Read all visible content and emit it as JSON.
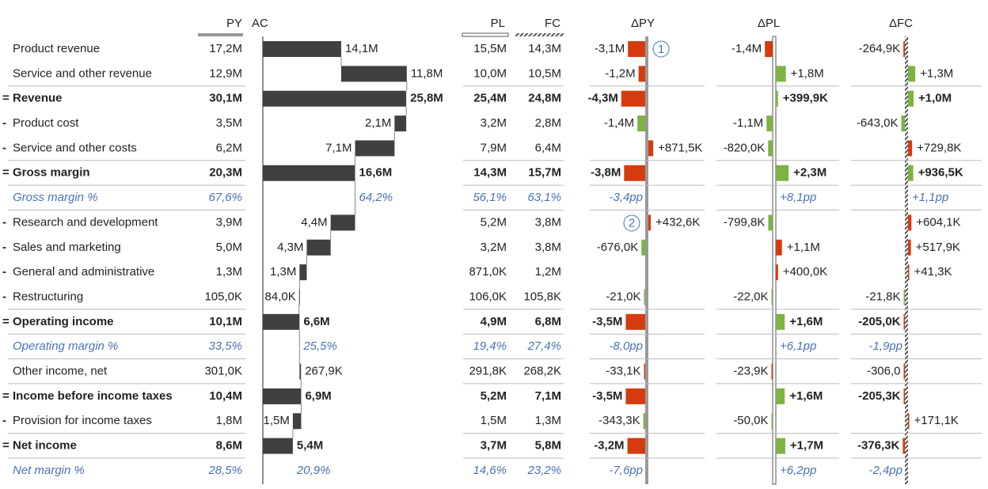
{
  "header": {
    "py": "PY",
    "ac": "AC",
    "pl": "PL",
    "fc": "FC",
    "dpy": "ΔPY",
    "dpl": "ΔPL",
    "dfc": "ΔFC"
  },
  "rows": [
    {
      "prefix": "",
      "label": "Product revenue",
      "py": "17,2M",
      "ac": {
        "value": 14.1,
        "label": "14,1M"
      },
      "pl": "15,5M",
      "fc": "14,3M",
      "dpy": {
        "value": -3.1,
        "label": "-3,1M"
      },
      "dpl": {
        "value": -1.4,
        "label": "-1,4M"
      },
      "dfc": {
        "value": -0.2649,
        "label": "-264,9K"
      },
      "note": "1"
    },
    {
      "prefix": "",
      "label": "Service and other revenue",
      "py": "12,9M",
      "ac": {
        "value": 11.8,
        "label": "11,8M"
      },
      "pl": "10,0M",
      "fc": "10,5M",
      "dpy": {
        "value": -1.2,
        "label": "-1,2M"
      },
      "dpl": {
        "value": 1.8,
        "label": "+1,8M"
      },
      "dfc": {
        "value": 1.3,
        "label": "+1,3M"
      }
    },
    {
      "prefix": "=",
      "label": "Revenue",
      "py": "30,1M",
      "ac": {
        "value": 25.8,
        "label": "25,8M"
      },
      "pl": "25,4M",
      "fc": "24,8M",
      "dpy": {
        "value": -4.3,
        "label": "-4,3M"
      },
      "dpl": {
        "value": 0.3999,
        "label": "+399,9K"
      },
      "dfc": {
        "value": 1.0,
        "label": "+1,0M"
      }
    },
    {
      "prefix": "-",
      "label": "Product cost",
      "py": "3,5M",
      "ac": {
        "value": 2.1,
        "label": "2,1M"
      },
      "pl": "3,2M",
      "fc": "2,8M",
      "dpy": {
        "value": -1.4,
        "label": "-1,4M"
      },
      "dpl": {
        "value": -1.1,
        "label": "-1,1M"
      },
      "dfc": {
        "value": -0.643,
        "label": "-643,0K"
      }
    },
    {
      "prefix": "-",
      "label": "Service and other costs",
      "py": "6,2M",
      "ac": {
        "value": 7.1,
        "label": "7,1M"
      },
      "pl": "7,9M",
      "fc": "6,4M",
      "dpy": {
        "value": 0.8715,
        "label": "+871,5K"
      },
      "dpl": {
        "value": -0.82,
        "label": "-820,0K"
      },
      "dfc": {
        "value": 0.7298,
        "label": "+729,8K"
      }
    },
    {
      "prefix": "=",
      "label": "Gross margin",
      "py": "20,3M",
      "ac": {
        "value": 16.6,
        "label": "16,6M"
      },
      "pl": "14,3M",
      "fc": "15,7M",
      "dpy": {
        "value": -3.8,
        "label": "-3,8M"
      },
      "dpl": {
        "value": 2.3,
        "label": "+2,3M"
      },
      "dfc": {
        "value": 0.9365,
        "label": "+936,5K"
      }
    },
    {
      "prefix": "",
      "label": "Gross margin %",
      "italic": true,
      "py": "67,6%",
      "ac": "64,2%",
      "pl": "56,1%",
      "fc": "63,1%",
      "dpy": "-3,4pp",
      "dpl": "+8,1pp",
      "dfc": "+1,1pp"
    },
    {
      "prefix": "-",
      "label": "Research and development",
      "py": "3,9M",
      "ac": {
        "value": 4.4,
        "label": "4,4M"
      },
      "pl": "5,2M",
      "fc": "3,8M",
      "dpy": {
        "value": 0.4326,
        "label": "+432,6K"
      },
      "dpl": {
        "value": -0.7998,
        "label": "-799,8K"
      },
      "dfc": {
        "value": 0.6041,
        "label": "+604,1K"
      },
      "note": "2"
    },
    {
      "prefix": "-",
      "label": "Sales and marketing",
      "py": "5,0M",
      "ac": {
        "value": 4.3,
        "label": "4,3M"
      },
      "pl": "3,2M",
      "fc": "3,8M",
      "dpy": {
        "value": -0.676,
        "label": "-676,0K"
      },
      "dpl": {
        "value": 1.1,
        "label": "+1,1M"
      },
      "dfc": {
        "value": 0.5179,
        "label": "+517,9K"
      }
    },
    {
      "prefix": "-",
      "label": "General and administrative",
      "py": "1,3M",
      "ac": {
        "value": 1.3,
        "label": "1,3M"
      },
      "pl": "871,0K",
      "fc": "1,2M",
      "dpy": null,
      "dpl": {
        "value": 0.4,
        "label": "+400,0K"
      },
      "dfc": {
        "value": 0.0413,
        "label": "+41,3K"
      }
    },
    {
      "prefix": "-",
      "label": "Restructuring",
      "py": "105,0K",
      "ac": {
        "value": 0.084,
        "label": "84,0K"
      },
      "pl": "106,0K",
      "fc": "105,8K",
      "dpy": {
        "value": -0.021,
        "label": "-21,0K"
      },
      "dpl": {
        "value": -0.022,
        "label": "-22,0K"
      },
      "dfc": {
        "value": -0.0218,
        "label": "-21,8K"
      }
    },
    {
      "prefix": "=",
      "label": "Operating income",
      "py": "10,1M",
      "ac": {
        "value": 6.6,
        "label": "6,6M"
      },
      "pl": "4,9M",
      "fc": "6,8M",
      "dpy": {
        "value": -3.5,
        "label": "-3,5M"
      },
      "dpl": {
        "value": 1.6,
        "label": "+1,6M"
      },
      "dfc": {
        "value": -0.205,
        "label": "-205,0K"
      }
    },
    {
      "prefix": "",
      "label": "Operating margin %",
      "italic": true,
      "py": "33,5%",
      "ac": "25,5%",
      "pl": "19,4%",
      "fc": "27,4%",
      "dpy": "-8,0pp",
      "dpl": "+6,1pp",
      "dfc": "-1,9pp"
    },
    {
      "prefix": "",
      "label": "Other income, net",
      "py": "301,0K",
      "ac": {
        "value": 0.2679,
        "label": "267,9K"
      },
      "pl": "291,8K",
      "fc": "268,2K",
      "dpy": {
        "value": -0.0331,
        "label": "-33,1K"
      },
      "dpl": {
        "value": -0.0239,
        "label": "-23,9K"
      },
      "dfc": {
        "value": -0.000306,
        "label": "-306,0"
      }
    },
    {
      "prefix": "=",
      "label": "Income before income taxes",
      "py": "10,4M",
      "ac": {
        "value": 6.9,
        "label": "6,9M"
      },
      "pl": "5,2M",
      "fc": "7,1M",
      "dpy": {
        "value": -3.5,
        "label": "-3,5M"
      },
      "dpl": {
        "value": 1.6,
        "label": "+1,6M"
      },
      "dfc": {
        "value": -0.2053,
        "label": "-205,3K"
      }
    },
    {
      "prefix": "-",
      "label": "Provision for income taxes",
      "py": "1,8M",
      "ac": {
        "value": 1.5,
        "label": "1,5M"
      },
      "pl": "1,5M",
      "fc": "1,3M",
      "dpy": {
        "value": -0.3433,
        "label": "-343,3K"
      },
      "dpl": {
        "value": -0.05,
        "label": "-50,0K"
      },
      "dfc": {
        "value": 0.1711,
        "label": "+171,1K"
      }
    },
    {
      "prefix": "=",
      "label": "Net income",
      "py": "8,6M",
      "ac": {
        "value": 5.4,
        "label": "5,4M"
      },
      "pl": "3,7M",
      "fc": "5,8M",
      "dpy": {
        "value": -3.2,
        "label": "-3,2M"
      },
      "dpl": {
        "value": 1.7,
        "label": "+1,7M"
      },
      "dfc": {
        "value": -0.3763,
        "label": "-376,3K"
      }
    },
    {
      "prefix": "",
      "label": "Net margin %",
      "italic": true,
      "py": "28,5%",
      "ac": "20,9%",
      "pl": "14,6%",
      "fc": "23,2%",
      "dpy": "-7,6pp",
      "dpl": "+6,2pp",
      "dfc": "-2,4pp"
    }
  ]
}
